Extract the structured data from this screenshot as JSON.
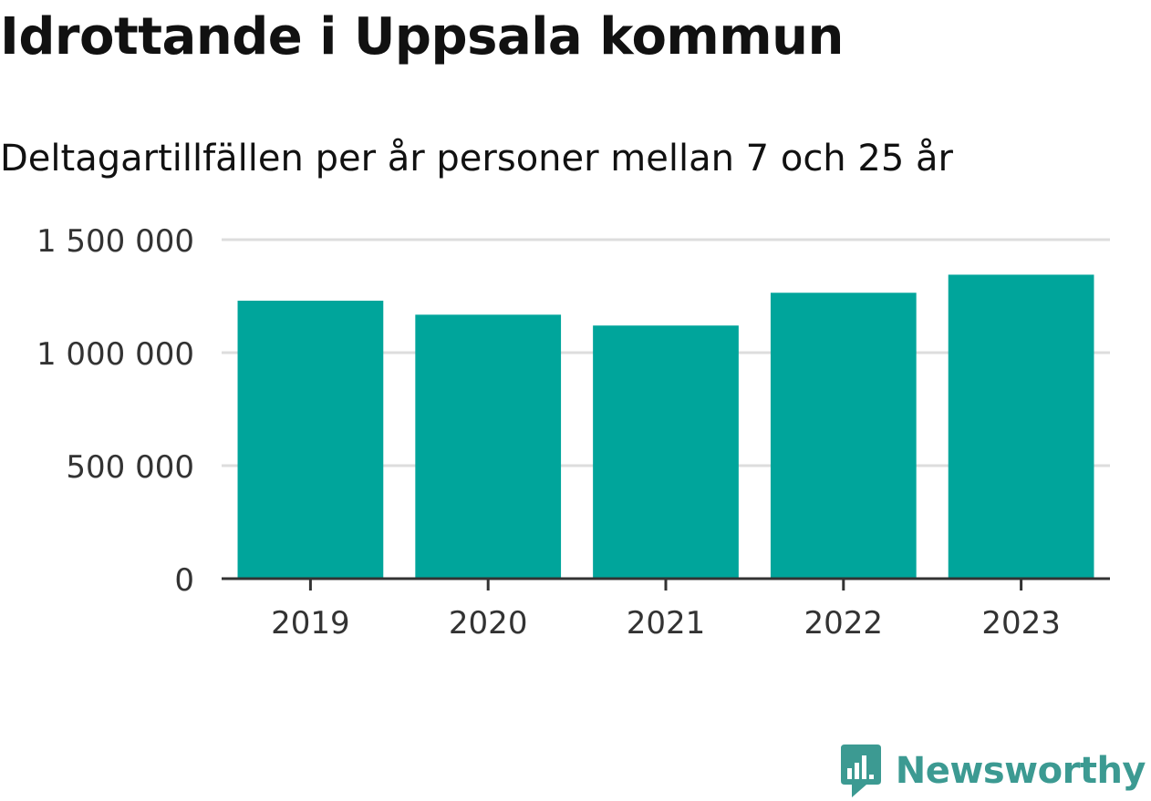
{
  "title": "Idrottande i Uppsala kommun",
  "subtitle": "Deltagartillfällen per år personer mellan 7 och 25 år",
  "brand": {
    "name": "Newsworthy",
    "color": "#3c9a92"
  },
  "chart_data": {
    "type": "bar",
    "categories": [
      "2019",
      "2020",
      "2021",
      "2022",
      "2023"
    ],
    "values": [
      1230000,
      1168000,
      1120000,
      1265000,
      1345000
    ],
    "ylim": [
      0,
      1500000
    ],
    "yticks": [
      0,
      500000,
      1000000,
      1500000
    ],
    "ytick_labels": [
      "0",
      "500 000",
      "1 000 000",
      "1 500 000"
    ],
    "bar_color": "#00a59b",
    "grid": true,
    "legend": "none"
  }
}
